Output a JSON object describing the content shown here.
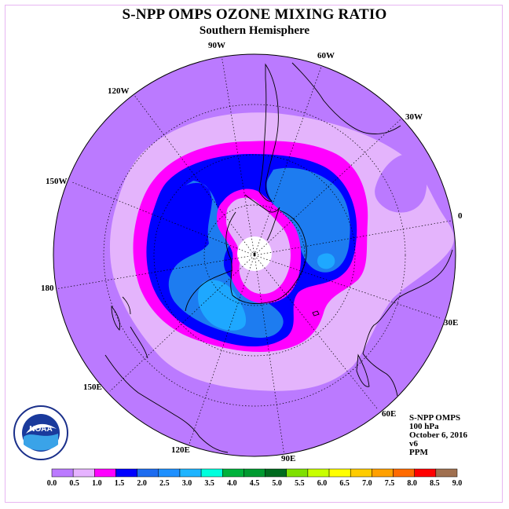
{
  "title": "S-NPP OMPS OZONE MIXING RATIO",
  "subtitle": "Southern Hemisphere",
  "longitude_labels": [
    "90W",
    "60W",
    "30W",
    "0",
    "30E",
    "60E",
    "90E",
    "120E",
    "150E",
    "180",
    "150W",
    "120W"
  ],
  "info": {
    "instrument": "S-NPP OMPS",
    "pressure_level": "100 hPa",
    "date": "October 6, 2016",
    "version": "v6",
    "units": "PPM"
  },
  "logo": {
    "text": "NOAA"
  },
  "colorbar": {
    "ticks": [
      "0.0",
      "0.5",
      "1.0",
      "1.5",
      "2.0",
      "2.5",
      "3.0",
      "3.5",
      "4.0",
      "4.5",
      "5.0",
      "5.5",
      "6.0",
      "6.5",
      "7.0",
      "7.5",
      "8.0",
      "8.5",
      "9.0"
    ],
    "colors": [
      "#bb7aff",
      "#e6b3ff",
      "#ff00ff",
      "#0000ff",
      "#1d6cf0",
      "#1e90ff",
      "#1eb4ff",
      "#00ffdd",
      "#00b23c",
      "#009a30",
      "#006b1e",
      "#7fe000",
      "#c8ff00",
      "#ffff00",
      "#ffcc00",
      "#ffa000",
      "#ff6a00",
      "#ff0000",
      "#a07050"
    ]
  },
  "palette": {
    "bg_field": "#bb7aff",
    "light_band": "#e4b4fc",
    "magenta": "#ff00ff",
    "blue": "#0000ff",
    "mid_blue": "#1d7cf0",
    "light_blue": "#1ea8ff",
    "pole_hole": "#ffffff"
  }
}
